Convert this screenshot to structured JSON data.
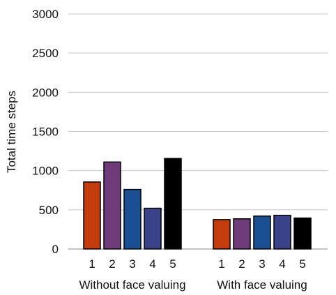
{
  "chart_data": {
    "type": "bar",
    "title": "",
    "ylabel": "Total time steps",
    "xlabel": "",
    "ylim": [
      0,
      3000
    ],
    "yticks": [
      0,
      500,
      1000,
      1500,
      2000,
      2500,
      3000
    ],
    "grid": true,
    "groups": [
      {
        "name": "Without face valuing",
        "categories": [
          "1",
          "2",
          "3",
          "4",
          "5"
        ],
        "values": [
          855,
          1110,
          760,
          520,
          1155
        ]
      },
      {
        "name": "With face valuing",
        "categories": [
          "1",
          "2",
          "3",
          "4",
          "5"
        ],
        "values": [
          375,
          385,
          420,
          430,
          395
        ]
      }
    ],
    "colors": [
      "#c43b0c",
      "#6e3c7a",
      "#1b4f91",
      "#3a4289",
      "#000000"
    ]
  }
}
